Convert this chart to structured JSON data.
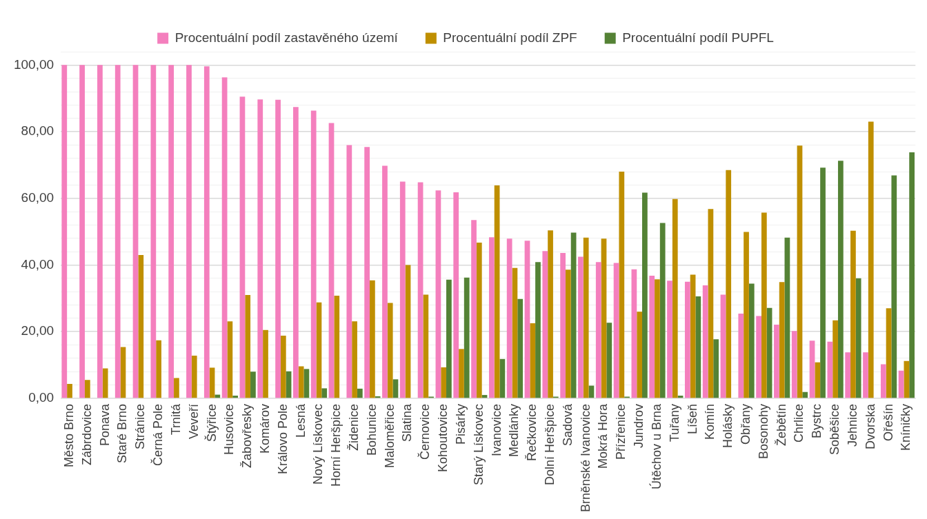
{
  "chart_data": {
    "type": "bar",
    "categories": [
      "Město Brno",
      "Zábrdovice",
      "Ponava",
      "Staré Brno",
      "Stránice",
      "Černá Pole",
      "Trnitá",
      "Veveří",
      "Štýřice",
      "Husovice",
      "Žabovřesky",
      "Komárov",
      "Královo Pole",
      "Lesná",
      "Nový Lískovec",
      "Horní Heršpice",
      "Židenice",
      "Bohunice",
      "Maloměřice",
      "Slatina",
      "Černovice",
      "Kohoutovice",
      "Pisárky",
      "Starý Lískovec",
      "Ivanovice",
      "Medlánky",
      "Řečkovice",
      "Dolní Heršpice",
      "Sadová",
      "Brněnské Ivanovice",
      "Mokrá Hora",
      "Přízřenice",
      "Jundrov",
      "Útěchov u Brna",
      "Tuřany",
      "Líšeň",
      "Komín",
      "Holásky",
      "Obřany",
      "Bosonohy",
      "Žebětín",
      "Chrlice",
      "Bystrc",
      "Soběšice",
      "Jehnice",
      "Dvorska",
      "Ořešín",
      "Kníničky"
    ],
    "series": [
      {
        "name": "Procentuální podíl zastavěného území",
        "color": "#f47fbd",
        "values": [
          100,
          100,
          100,
          100,
          100,
          100,
          100,
          100,
          99.6,
          96.3,
          90.5,
          89.7,
          89.6,
          87.4,
          86.3,
          82.6,
          76,
          75.4,
          69.8,
          65,
          64.8,
          62.4,
          61.8,
          53.5,
          48.3,
          47.9,
          47.3,
          44.2,
          43.6,
          42.5,
          40.9,
          40.6,
          38.7,
          36.8,
          35.3,
          35,
          33.9,
          31.1,
          25.4,
          24.7,
          22.1,
          20.2,
          17.3,
          17,
          13.8,
          13.8,
          10.2,
          8.3
        ]
      },
      {
        "name": "Procentuální podíl ZPF",
        "color": "#bf8f00",
        "values": [
          4.3,
          5.5,
          9,
          15.4,
          43,
          17.4,
          6.1,
          12.8,
          9.2,
          23.1,
          31,
          20.5,
          18.8,
          9.6,
          28.8,
          30.8,
          23.1,
          35.4,
          28.6,
          40,
          31.1,
          9.3,
          14.8,
          46.7,
          63.9,
          39.1,
          22.5,
          50.4,
          38.6,
          48.2,
          47.9,
          68,
          26,
          35.7,
          59.8,
          37.1,
          56.8,
          68.5,
          49.9,
          55.7,
          34.9,
          75.8,
          10.8,
          23.4,
          50.3,
          83,
          27,
          11.2
        ]
      },
      {
        "name": "Procentuální podíl PUPFL",
        "color": "#548235",
        "values": [
          0,
          0,
          0,
          0,
          0,
          0,
          0,
          0,
          1.1,
          0.8,
          8,
          0,
          8.1,
          8.8,
          3,
          0,
          2.9,
          0.6,
          5.7,
          0,
          0.5,
          35.6,
          36.2,
          1,
          11.8,
          29.8,
          40.9,
          0.5,
          49.7,
          3.8,
          22.7,
          0.5,
          61.7,
          52.6,
          0.8,
          30.6,
          17.7,
          0,
          34.4,
          27.1,
          48.2,
          1.9,
          69.2,
          71.3,
          36,
          0,
          66.9,
          73.8
        ]
      }
    ],
    "ylim": [
      0,
      104
    ],
    "yticks": [
      {
        "value": 0,
        "label": "0,00"
      },
      {
        "value": 4,
        "label": null
      },
      {
        "value": 8,
        "label": null
      },
      {
        "value": 12,
        "label": null
      },
      {
        "value": 16,
        "label": null
      },
      {
        "value": 20,
        "label": "20,00"
      },
      {
        "value": 24,
        "label": null
      },
      {
        "value": 28,
        "label": null
      },
      {
        "value": 32,
        "label": null
      },
      {
        "value": 36,
        "label": null
      },
      {
        "value": 40,
        "label": "40,00"
      },
      {
        "value": 44,
        "label": null
      },
      {
        "value": 48,
        "label": null
      },
      {
        "value": 52,
        "label": null
      },
      {
        "value": 56,
        "label": null
      },
      {
        "value": 60,
        "label": "60,00"
      },
      {
        "value": 64,
        "label": null
      },
      {
        "value": 68,
        "label": null
      },
      {
        "value": 72,
        "label": null
      },
      {
        "value": 76,
        "label": null
      },
      {
        "value": 80,
        "label": "80,00"
      },
      {
        "value": 84,
        "label": null
      },
      {
        "value": 88,
        "label": null
      },
      {
        "value": 92,
        "label": null
      },
      {
        "value": 96,
        "label": null
      },
      {
        "value": 100,
        "label": "100,00"
      },
      {
        "value": 104,
        "label": null
      }
    ],
    "grid": "y",
    "legend": "top"
  }
}
